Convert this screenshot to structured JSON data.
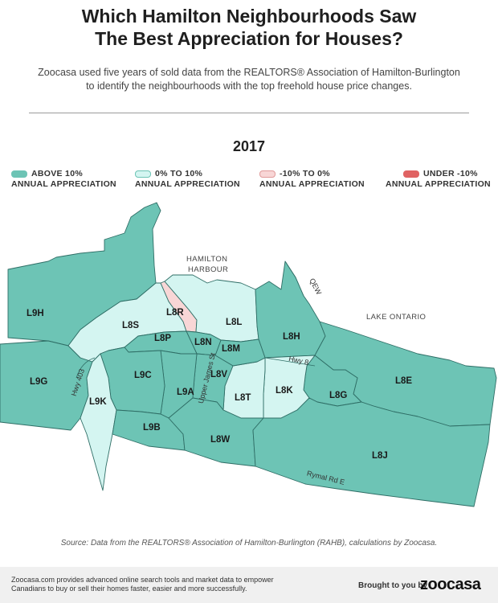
{
  "header": {
    "title_line1": "Which Hamilton Neighbourhoods Saw",
    "title_line2": "The Best Appreciation for Houses?",
    "subtitle_line1": "Zoocasa used five years of sold data from the REALTORS® Association of Hamilton-Burlington",
    "subtitle_line2": "to identify the neighbourhoods with the top freehold house price changes."
  },
  "year": "2017",
  "legend": [
    {
      "line1": "ABOVE 10%",
      "line2": "ANNUAL APPRECIATION",
      "color": "#6dc4b5"
    },
    {
      "line1": "0% TO 10%",
      "line2": "ANNUAL APPRECIATION",
      "color": "#d4f5f1"
    },
    {
      "line1": "-10% TO 0%",
      "line2": "ANNUAL APPRECIATION",
      "color": "#f8d6d6"
    },
    {
      "line1": "UNDER -10%",
      "line2": "ANNUAL APPRECIATION",
      "color": "#e06363"
    }
  ],
  "colors": {
    "above10": "#6dc4b5",
    "zero_to10": "#d4f5f1",
    "neg10_to0": "#f8d6d6",
    "under_neg10": "#e06363",
    "border": "#2f6e66"
  },
  "map": {
    "neighbourhoods": [
      "L9H",
      "L8S",
      "L8R",
      "L8L",
      "L8H",
      "L9G",
      "L8P",
      "L8N",
      "L8M",
      "L9C",
      "L9A",
      "L8V",
      "L8T",
      "L8K",
      "L8G",
      "L8E",
      "L9K",
      "L9B",
      "L8W",
      "L8J"
    ],
    "geo_labels": {
      "harbour_line1": "HAMILTON",
      "harbour_line2": "HARBOUR",
      "lake": "LAKE ONTARIO",
      "qew": "QEW",
      "hwy403": "Hwy 403",
      "hwy8": "Hwy 8",
      "upper_james": "Upper James St",
      "rymal": "Rymal Rd E"
    }
  },
  "source": "Source: Data from the REALTORS® Association of Hamilton-Burlington (RAHB), calculations by Zoocasa.",
  "footer": {
    "line1": "Zoocasa.com provides advanced online search tools and market data to empower",
    "line2": "Canadians to buy or sell their homes faster, easier and more successfully.",
    "brought": "Brought to you by",
    "logo": "zoocasa"
  }
}
